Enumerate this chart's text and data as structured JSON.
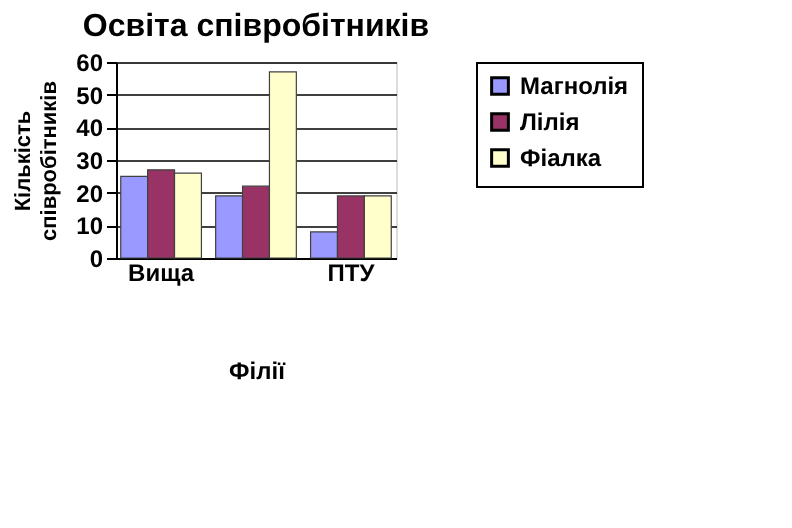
{
  "chart_data": {
    "type": "bar",
    "title": "Освіта співробітників",
    "xlabel": "Філії",
    "ylabel": "Кількість співробітників",
    "categories": [
      "Вища",
      null,
      "ПТУ"
    ],
    "series": [
      {
        "name": "Магнолія",
        "color": "#9999ff",
        "values": [
          25,
          19,
          8
        ]
      },
      {
        "name": "Лілія",
        "color": "#993366",
        "values": [
          27,
          22,
          19
        ]
      },
      {
        "name": "Фіалка",
        "color": "#ffffcc",
        "values": [
          26,
          57,
          19
        ]
      }
    ],
    "ylim": [
      0,
      60
    ],
    "yticks": [
      0,
      10,
      20,
      30,
      40,
      50,
      60
    ],
    "grid": "y",
    "legend": "right"
  }
}
